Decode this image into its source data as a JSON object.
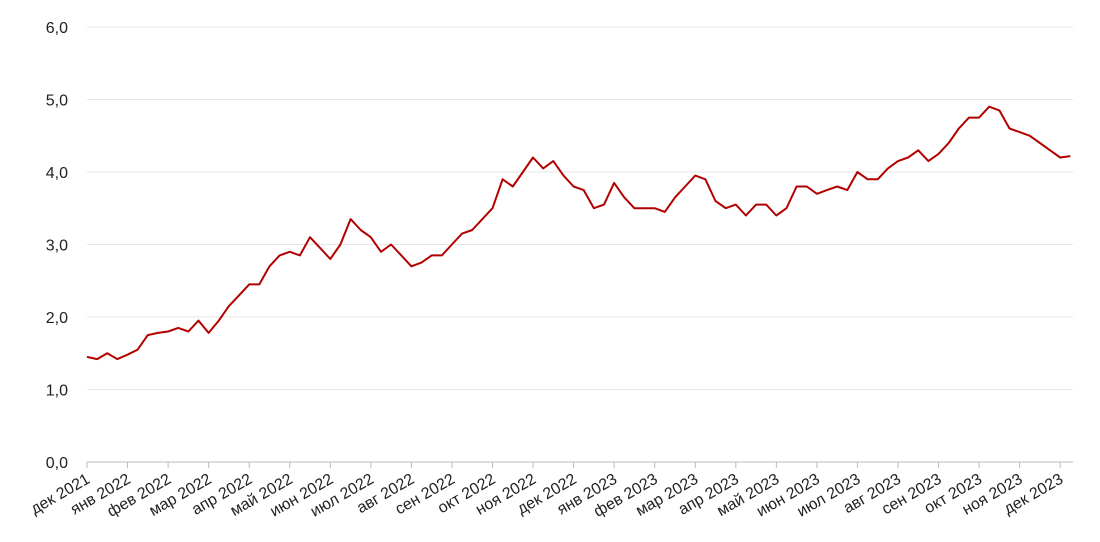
{
  "chart_data": {
    "type": "line",
    "categories": [
      "дек 2021",
      null,
      null,
      null,
      "янв 2022",
      null,
      null,
      null,
      "фев 2022",
      null,
      null,
      null,
      "мар 2022",
      null,
      null,
      null,
      "апр 2022",
      null,
      null,
      null,
      "май 2022",
      null,
      null,
      null,
      "июн 2022",
      null,
      null,
      null,
      "июл 2022",
      null,
      null,
      null,
      "авг 2022",
      null,
      null,
      null,
      "сен 2022",
      null,
      null,
      null,
      "окт 2022",
      null,
      null,
      null,
      "ноя 2022",
      null,
      null,
      null,
      "дек 2022",
      null,
      null,
      null,
      "янв 2023",
      null,
      null,
      null,
      "фев 2023",
      null,
      null,
      null,
      "мар 2023",
      null,
      null,
      null,
      "апр 2023",
      null,
      null,
      null,
      "май 2023",
      null,
      null,
      null,
      "июн 2023",
      null,
      null,
      null,
      "июл 2023",
      null,
      null,
      null,
      "авг 2023",
      null,
      null,
      null,
      "сен 2023",
      null,
      null,
      null,
      "окт 2023",
      null,
      null,
      null,
      "ноя 2023",
      null,
      null,
      null,
      "дек 2023",
      null
    ],
    "values": [
      1.45,
      1.42,
      1.5,
      1.42,
      1.48,
      1.55,
      1.75,
      1.78,
      1.8,
      1.85,
      1.8,
      1.95,
      1.78,
      1.95,
      2.15,
      2.3,
      2.45,
      2.45,
      2.7,
      2.85,
      2.9,
      2.85,
      3.1,
      2.95,
      2.8,
      3.0,
      3.35,
      3.2,
      3.1,
      2.9,
      3.0,
      2.85,
      2.7,
      2.75,
      2.85,
      2.85,
      3.0,
      3.15,
      3.2,
      3.35,
      3.5,
      3.9,
      3.8,
      4.0,
      4.2,
      4.05,
      4.15,
      3.95,
      3.8,
      3.75,
      3.5,
      3.55,
      3.85,
      3.65,
      3.5,
      3.5,
      3.5,
      3.45,
      3.65,
      3.8,
      3.95,
      3.9,
      3.6,
      3.5,
      3.55,
      3.4,
      3.55,
      3.55,
      3.4,
      3.5,
      3.8,
      3.8,
      3.7,
      3.75,
      3.8,
      3.75,
      4.0,
      3.9,
      3.9,
      4.05,
      4.15,
      4.2,
      4.3,
      4.15,
      4.25,
      4.4,
      4.6,
      4.75,
      4.75,
      4.9,
      4.85,
      4.6,
      4.55,
      4.5,
      4.4,
      4.3,
      4.2,
      4.22
    ],
    "color": "#b30000",
    "ylim": [
      0,
      6
    ],
    "yticks": [
      {
        "value": 0,
        "label": "0,0"
      },
      {
        "value": 1,
        "label": "1,0"
      },
      {
        "value": 2,
        "label": "2,0"
      },
      {
        "value": 3,
        "label": "3,0"
      },
      {
        "value": 4,
        "label": "4,0"
      },
      {
        "value": 5,
        "label": "5,0"
      },
      {
        "value": 6,
        "label": "6,0"
      }
    ],
    "grid": true
  }
}
